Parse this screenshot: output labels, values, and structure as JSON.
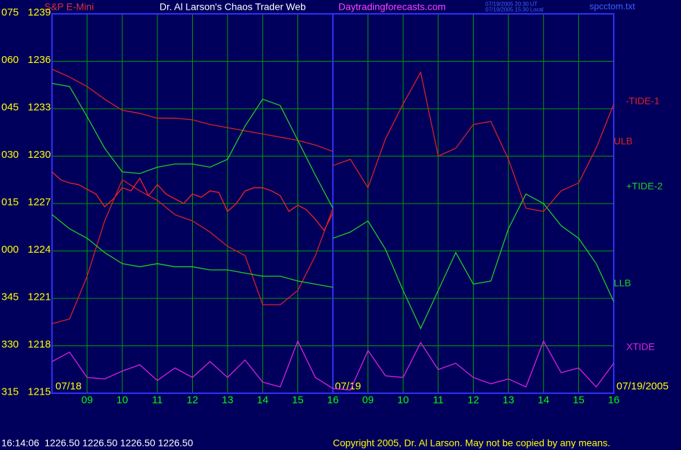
{
  "chart_data": {
    "type": "line",
    "instrument": "S&P E-Mini",
    "title": "Dr. Al Larson's Chaos Trader Web",
    "website": "Daytradingforecasts.com",
    "timestamps": [
      "07/19/2005 20:30 UT",
      "07/19/2005 15:30 Local"
    ],
    "filename": "spcctom.txt",
    "date_labels": [
      "07/18",
      "07/19",
      "07/19/2005"
    ],
    "status_line": "16:14:06  1226.50 1226.50 1226.50 1226.50",
    "copyright": "Copyright 2005, Dr. Al Larson. May not be copied by any means.",
    "xlim": [
      0,
      16
    ],
    "ylim": [
      1215,
      1239
    ],
    "xticks": [
      {
        "value": 1,
        "label": "09"
      },
      {
        "value": 2,
        "label": "10"
      },
      {
        "value": 3,
        "label": "11"
      },
      {
        "value": 4,
        "label": "12"
      },
      {
        "value": 5,
        "label": "13"
      },
      {
        "value": 6,
        "label": "14"
      },
      {
        "value": 7,
        "label": "15"
      },
      {
        "value": 8,
        "label": "16"
      },
      {
        "value": 9,
        "label": "09"
      },
      {
        "value": 10,
        "label": "10"
      },
      {
        "value": 11,
        "label": "11"
      },
      {
        "value": 12,
        "label": "12"
      },
      {
        "value": 13,
        "label": "13"
      },
      {
        "value": 14,
        "label": "14"
      },
      {
        "value": 15,
        "label": "15"
      },
      {
        "value": 16,
        "label": "16"
      }
    ],
    "yticks": [
      1215,
      1218,
      1221,
      1224,
      1227,
      1230,
      1233,
      1236,
      1239
    ],
    "angle_labels": [
      "315",
      "330",
      "345",
      "000",
      "015",
      "030",
      "045",
      "060",
      "075"
    ],
    "grid": true,
    "series": [
      {
        "color": "#ff2020",
        "x": [
          0,
          0.25,
          0.5,
          0.75,
          1,
          1.25,
          1.5,
          1.75,
          2,
          2.25,
          2.5,
          2.75,
          3,
          3.25,
          3.5,
          3.75,
          4,
          4.25,
          4.5,
          4.75,
          5,
          5.25,
          5.5,
          5.75,
          6,
          6.25,
          6.5,
          6.75,
          7,
          7.25,
          7.5,
          7.75,
          8
        ],
        "values": [
          1229.0,
          1228.5,
          1228.3,
          1228.2,
          1227.9,
          1227.6,
          1226.8,
          1227.3,
          1228.0,
          1227.8,
          1228.6,
          1227.5,
          1228.2,
          1227.6,
          1227.3,
          1227.0,
          1227.6,
          1227.4,
          1227.8,
          1227.7,
          1226.5,
          1227.0,
          1227.8,
          1228.0,
          1228.0,
          1227.8,
          1227.5,
          1226.5,
          1226.9,
          1226.6,
          1226.0,
          1225.3,
          1226.4
        ]
      },
      {
        "name": "ULB",
        "color": "#e02020",
        "x": [
          0,
          0.5,
          1,
          1.5,
          2,
          2.5,
          3,
          3.5,
          4,
          4.5,
          5,
          5.5,
          6,
          6.5,
          7,
          7.5,
          8
        ],
        "values": [
          1235.5,
          1235.0,
          1234.4,
          1233.6,
          1232.9,
          1232.7,
          1232.4,
          1232.4,
          1232.3,
          1232.0,
          1231.8,
          1231.6,
          1231.4,
          1231.2,
          1231.0,
          1230.7,
          1230.3
        ]
      },
      {
        "color": "#20d020",
        "x": [
          0,
          0.5,
          1,
          1.5,
          2,
          2.5,
          3,
          3.5,
          4,
          4.5,
          5,
          5.5,
          6,
          6.5,
          7,
          7.5,
          8
        ],
        "values": [
          1234.6,
          1234.4,
          1232.5,
          1230.5,
          1229.0,
          1228.9,
          1229.3,
          1229.5,
          1229.5,
          1229.3,
          1229.8,
          1231.9,
          1233.6,
          1233.2,
          1231.0,
          1228.8,
          1226.7
        ]
      },
      {
        "color": "#e02020",
        "x": [
          0,
          0.5,
          1,
          1.5,
          2,
          2.5,
          3,
          3.5,
          4,
          4.5,
          5,
          5.5,
          6,
          6.5,
          7,
          7.5,
          8
        ],
        "values": [
          1219.4,
          1219.7,
          1222.4,
          1225.9,
          1228.5,
          1227.8,
          1227.2,
          1226.3,
          1225.9,
          1225.2,
          1224.3,
          1223.7,
          1220.6,
          1220.6,
          1221.5,
          1223.7,
          1226.7
        ]
      },
      {
        "name": "LLB",
        "color": "#20d020",
        "x": [
          0,
          0.5,
          1,
          1.5,
          2,
          2.5,
          3,
          3.5,
          4,
          4.5,
          5,
          5.5,
          6,
          6.5,
          7,
          7.5,
          8
        ],
        "values": [
          1226.3,
          1225.4,
          1224.8,
          1223.9,
          1223.2,
          1223.0,
          1223.2,
          1223.0,
          1223.0,
          1222.8,
          1222.8,
          1222.6,
          1222.4,
          1222.4,
          1222.1,
          1221.9,
          1221.7
        ]
      },
      {
        "name": "-TIDE-1",
        "color": "#e02020",
        "x": [
          8,
          8.5,
          9,
          9.5,
          10,
          10.5,
          11,
          11.5,
          12,
          12.5,
          13,
          13.5,
          14,
          14.5,
          15,
          15.5,
          16
        ],
        "values": [
          1229.4,
          1229.8,
          1228.0,
          1231.1,
          1233.3,
          1235.3,
          1230.0,
          1230.5,
          1232.0,
          1232.2,
          1229.8,
          1226.7,
          1226.5,
          1227.8,
          1228.3,
          1230.5,
          1233.3
        ]
      },
      {
        "name": "+TIDE-2",
        "color": "#20d020",
        "x": [
          8,
          8.5,
          9,
          9.5,
          10,
          10.5,
          11,
          11.5,
          12,
          12.5,
          13,
          13.5,
          14,
          14.5,
          15,
          15.5,
          16
        ],
        "values": [
          1224.8,
          1225.2,
          1225.9,
          1224.1,
          1221.5,
          1219.1,
          1221.5,
          1223.9,
          1221.9,
          1222.1,
          1225.4,
          1227.6,
          1227.0,
          1225.6,
          1224.8,
          1223.2,
          1220.8
        ]
      },
      {
        "name": "XTIDE",
        "color": "#e020e0",
        "x": [
          0,
          0.5,
          1,
          1.5,
          2,
          2.5,
          3,
          3.5,
          4,
          4.5,
          5,
          5.5,
          6,
          6.5,
          7,
          7.5,
          8,
          8.5,
          9,
          9.5,
          10,
          10.5,
          11,
          11.5,
          12,
          12.5,
          13,
          13.5,
          14,
          14.5,
          15,
          15.5,
          16
        ],
        "values": [
          1217.0,
          1217.6,
          1216.0,
          1215.9,
          1216.4,
          1216.8,
          1215.8,
          1216.6,
          1216.0,
          1217.0,
          1216.0,
          1217.1,
          1215.7,
          1215.4,
          1218.3,
          1216.0,
          1215.3,
          1215.2,
          1217.7,
          1216.1,
          1216.0,
          1218.2,
          1216.5,
          1216.9,
          1216.0,
          1215.6,
          1215.9,
          1215.4,
          1218.3,
          1216.3,
          1216.6,
          1215.4,
          1216.9
        ]
      }
    ]
  }
}
